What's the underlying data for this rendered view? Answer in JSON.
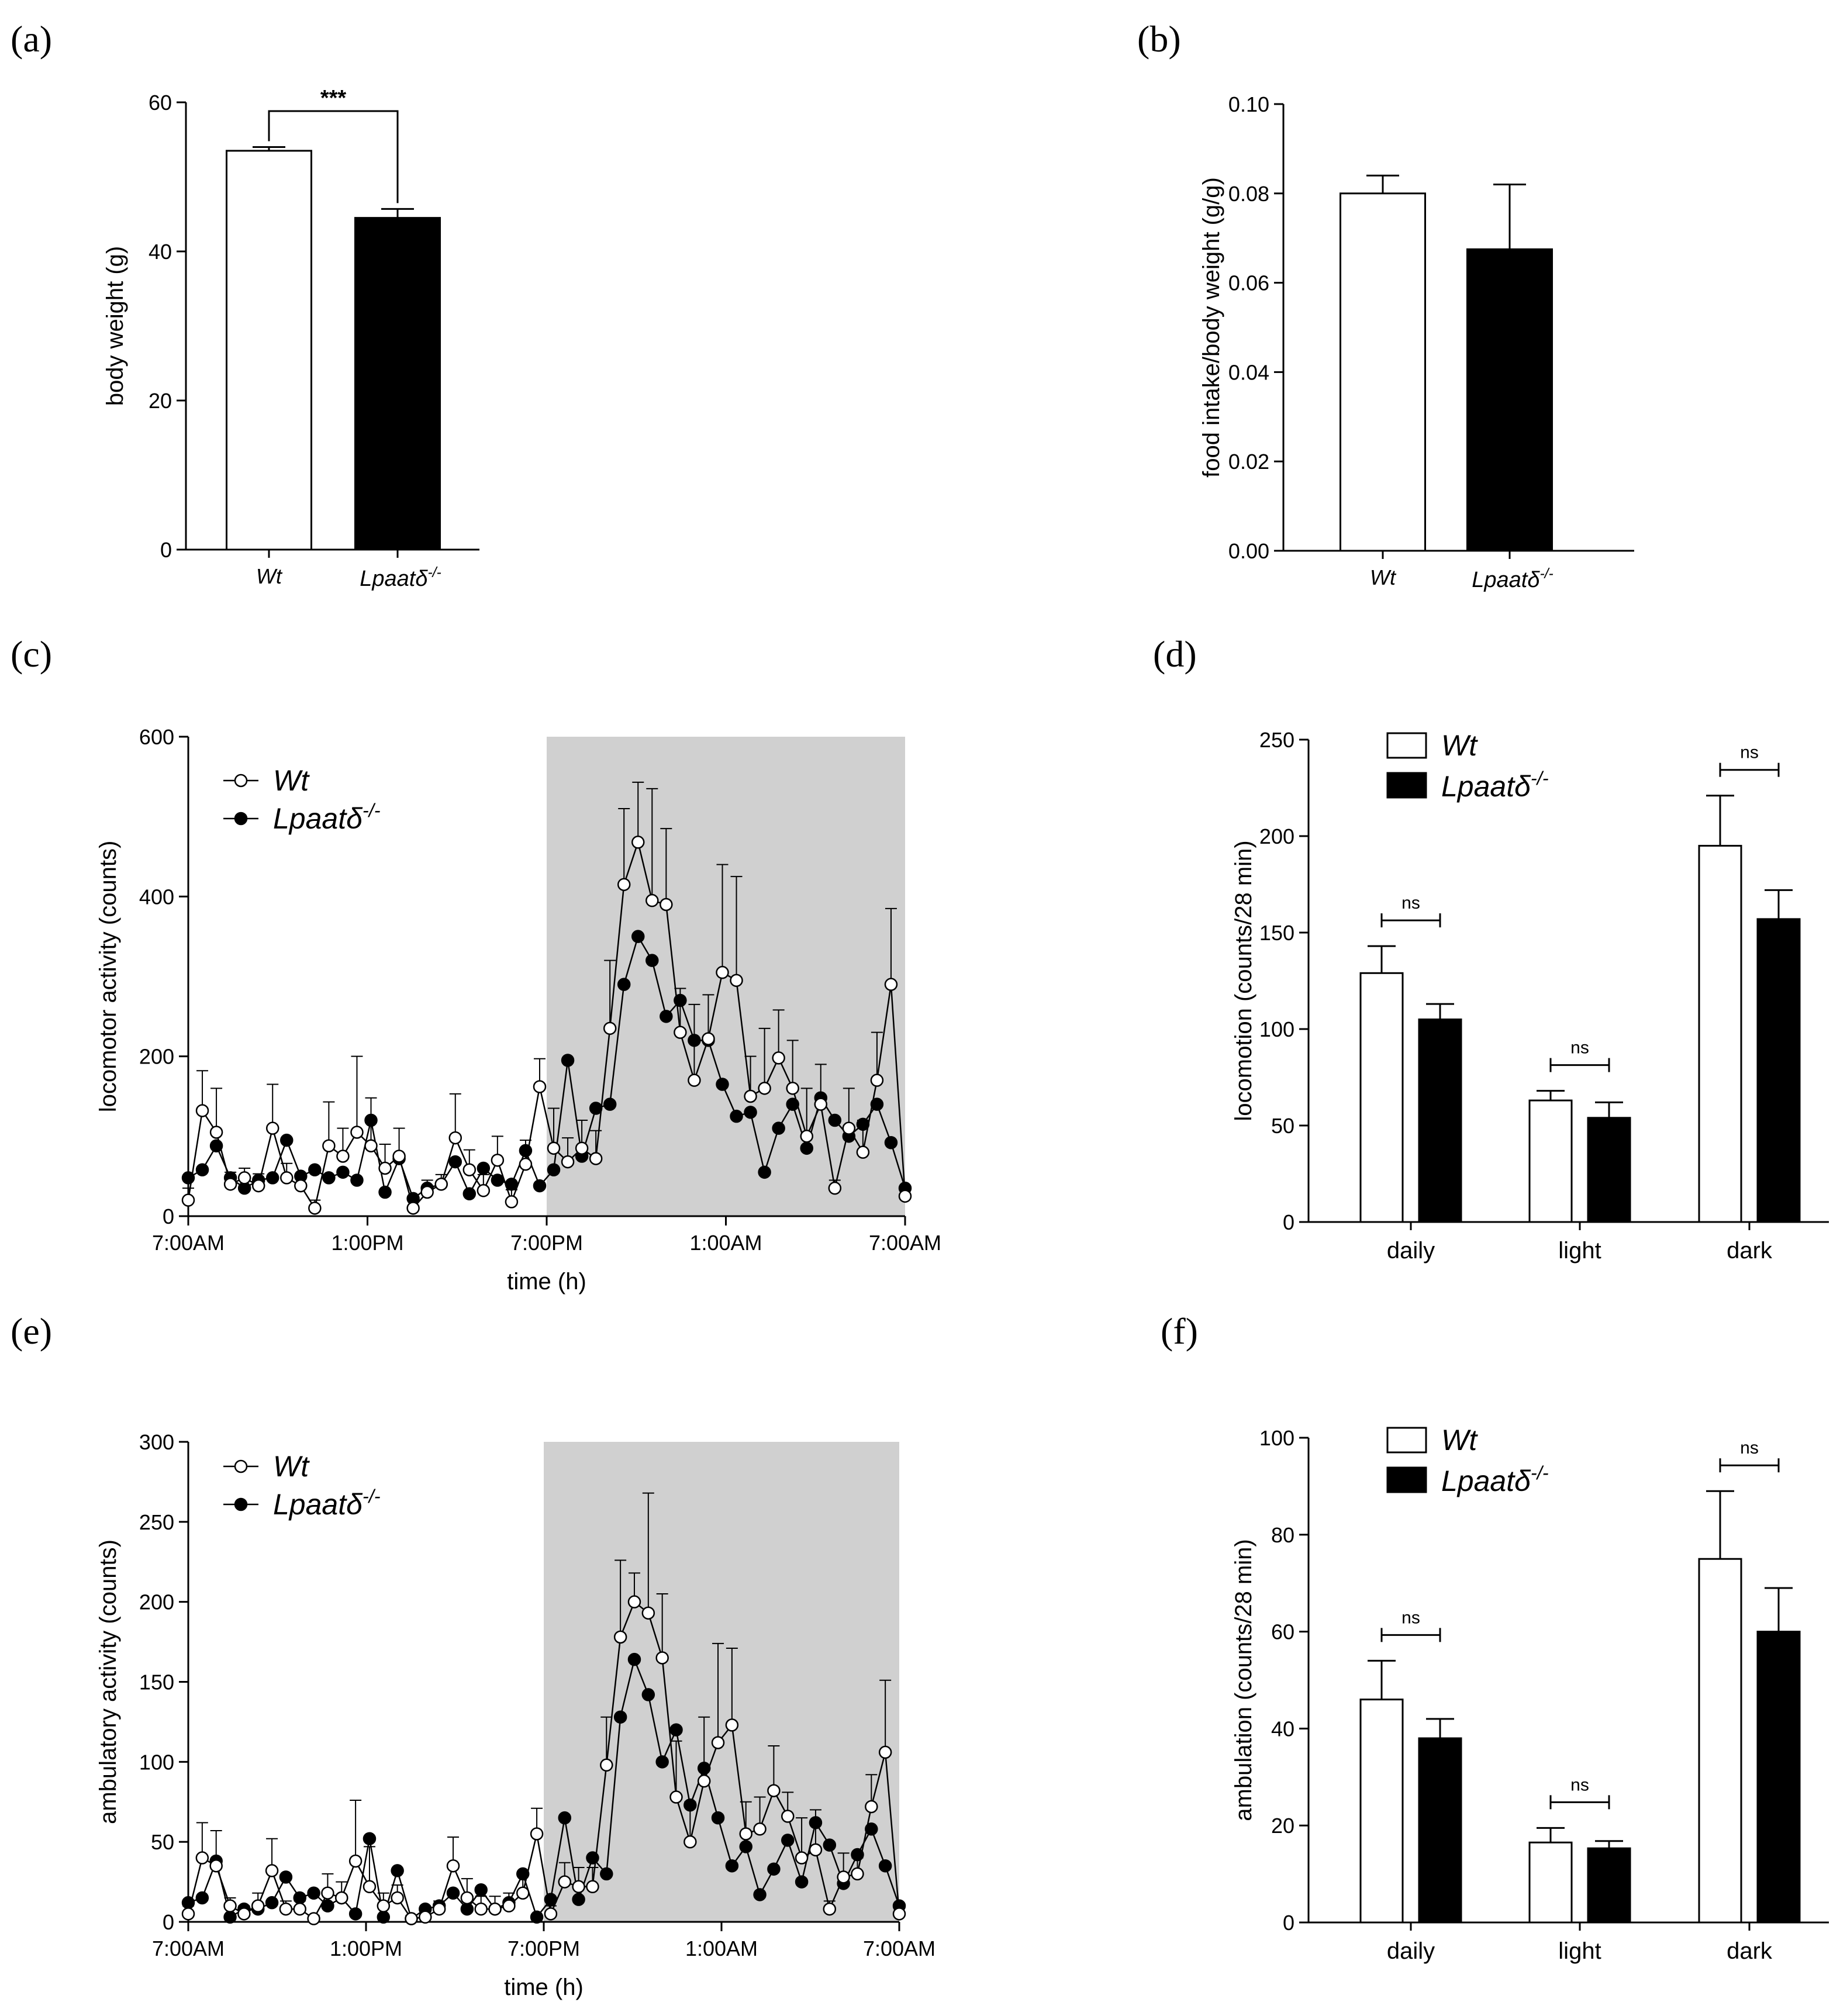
{
  "figure_labels": {
    "a": "(a)",
    "b": "(b)",
    "c": "(c)",
    "d": "(d)",
    "e": "(e)",
    "f": "(f)"
  },
  "genotypes": {
    "wt": "Wt",
    "ko_base": "Lpaatδ",
    "ko_sup": "-/-"
  },
  "colors": {
    "wt_fill": "#ffffff",
    "ko_fill": "#000000",
    "dark_phase": "#d0d0d0",
    "axis": "#000000"
  },
  "chart_data": [
    {
      "id": "a",
      "type": "bar",
      "ylabel": "body weight (g)",
      "ylim": [
        0,
        60
      ],
      "yticks": [
        "0",
        "20",
        "40",
        "60"
      ],
      "categories": [
        "Wt",
        "Lpaatδ-/-"
      ],
      "values": [
        53.5,
        44.5
      ],
      "errors": [
        0.5,
        1.2
      ],
      "significance": "***"
    },
    {
      "id": "b",
      "type": "bar",
      "ylabel": "food intake/body weight (g/g)",
      "ylim": [
        0,
        0.1
      ],
      "yticks": [
        "0.00",
        "0.02",
        "0.04",
        "0.06",
        "0.08",
        "0.10"
      ],
      "categories": [
        "Wt",
        "Lpaatδ-/-"
      ],
      "values": [
        0.08,
        0.0675
      ],
      "errors": [
        0.004,
        0.0145
      ]
    },
    {
      "id": "c",
      "type": "line",
      "xlabel": "time (h)",
      "ylabel": "locomotor activity (counts)",
      "ylim": [
        0,
        600
      ],
      "yticks": [
        "0",
        "200",
        "400",
        "600"
      ],
      "xticks": [
        "7:00AM",
        "1:00PM",
        "7:00PM",
        "1:00AM",
        "7:00AM"
      ],
      "x_range_h": [
        0,
        24
      ],
      "dark_phase_h": [
        12,
        24
      ],
      "series": [
        {
          "name": "Wt",
          "values": [
            20,
            132,
            105,
            40,
            48,
            38,
            110,
            48,
            38,
            10,
            88,
            75,
            105,
            88,
            60,
            75,
            10,
            30,
            40,
            98,
            58,
            32,
            70,
            18,
            65,
            162,
            85,
            68,
            85,
            72,
            235,
            415,
            468,
            395,
            390,
            230,
            170,
            222,
            305,
            295,
            150,
            160,
            198,
            160,
            100,
            140,
            35,
            110,
            80,
            170,
            290,
            25
          ],
          "errors": [
            15,
            50,
            55,
            15,
            12,
            15,
            55,
            18,
            12,
            10,
            55,
            35,
            95,
            60,
            30,
            35,
            10,
            15,
            12,
            55,
            25,
            20,
            30,
            15,
            30,
            35,
            50,
            30,
            35,
            35,
            85,
            95,
            75,
            140,
            95,
            55,
            95,
            55,
            135,
            130,
            50,
            75,
            60,
            60,
            60,
            50,
            10,
            50,
            40,
            60,
            95,
            10
          ]
        },
        {
          "name": "Lpaatδ-/-",
          "values": [
            48,
            58,
            88,
            48,
            35,
            45,
            48,
            95,
            50,
            58,
            48,
            55,
            45,
            120,
            30,
            72,
            22,
            35,
            40,
            68,
            28,
            60,
            45,
            40,
            82,
            38,
            58,
            195,
            75,
            135,
            140,
            290,
            350,
            320,
            250,
            270,
            220,
            220,
            165,
            125,
            130,
            55,
            110,
            140,
            85,
            148,
            120,
            100,
            115,
            140,
            92,
            35
          ],
          "errors": [
            0,
            0,
            0,
            0,
            0,
            0,
            0,
            0,
            0,
            0,
            0,
            0,
            0,
            0,
            0,
            0,
            0,
            0,
            0,
            0,
            0,
            0,
            0,
            0,
            0,
            0,
            0,
            0,
            0,
            0,
            0,
            0,
            0,
            0,
            0,
            0,
            0,
            0,
            0,
            0,
            0,
            0,
            0,
            0,
            0,
            0,
            0,
            0,
            0,
            0,
            0,
            0
          ]
        }
      ]
    },
    {
      "id": "d",
      "type": "bar",
      "ylabel": "locomotion (counts/28 min)",
      "ylim": [
        0,
        250
      ],
      "yticks": [
        "0",
        "50",
        "100",
        "150",
        "200",
        "250"
      ],
      "categories": [
        "daily",
        "light",
        "dark"
      ],
      "series": [
        {
          "name": "Wt",
          "values": [
            129,
            63,
            195
          ],
          "errors": [
            14,
            5,
            26
          ]
        },
        {
          "name": "Lpaatδ-/-",
          "values": [
            105,
            54,
            157
          ],
          "errors": [
            8,
            8,
            15
          ]
        }
      ],
      "significance": [
        "ns",
        "ns",
        "ns"
      ]
    },
    {
      "id": "e",
      "type": "line",
      "xlabel": "time (h)",
      "ylabel": "ambulatory activity (counts)",
      "ylim": [
        0,
        300
      ],
      "yticks": [
        "0",
        "50",
        "100",
        "150",
        "200",
        "250",
        "300"
      ],
      "xticks": [
        "7:00AM",
        "1:00PM",
        "7:00PM",
        "1:00AM",
        "7:00AM"
      ],
      "x_range_h": [
        0,
        24
      ],
      "dark_phase_h": [
        12,
        24
      ],
      "series": [
        {
          "name": "Wt",
          "values": [
            5,
            40,
            35,
            10,
            5,
            10,
            32,
            8,
            8,
            2,
            18,
            15,
            38,
            22,
            10,
            15,
            2,
            3,
            8,
            35,
            15,
            8,
            8,
            10,
            18,
            55,
            5,
            25,
            22,
            22,
            98,
            178,
            200,
            193,
            165,
            78,
            50,
            88,
            112,
            123,
            55,
            58,
            82,
            66,
            40,
            45,
            8,
            28,
            30,
            72,
            106,
            5
          ],
          "errors": [
            5,
            22,
            22,
            5,
            5,
            8,
            20,
            5,
            5,
            2,
            12,
            10,
            38,
            25,
            8,
            8,
            2,
            2,
            5,
            18,
            12,
            8,
            8,
            8,
            12,
            16,
            5,
            12,
            12,
            12,
            30,
            48,
            18,
            75,
            40,
            35,
            25,
            40,
            62,
            48,
            20,
            20,
            28,
            15,
            25,
            25,
            5,
            15,
            10,
            20,
            45,
            5
          ]
        },
        {
          "name": "Lpaatδ-/-",
          "values": [
            12,
            15,
            38,
            3,
            8,
            8,
            12,
            28,
            15,
            18,
            10,
            15,
            5,
            52,
            3,
            32,
            2,
            8,
            10,
            18,
            8,
            20,
            8,
            12,
            30,
            3,
            14,
            65,
            14,
            40,
            30,
            128,
            164,
            142,
            100,
            120,
            73,
            96,
            65,
            35,
            47,
            17,
            33,
            51,
            25,
            62,
            48,
            24,
            42,
            58,
            35,
            10
          ],
          "errors": [
            0,
            0,
            0,
            0,
            0,
            0,
            0,
            0,
            0,
            0,
            0,
            0,
            0,
            0,
            0,
            0,
            0,
            0,
            0,
            0,
            0,
            0,
            0,
            0,
            0,
            0,
            0,
            0,
            0,
            0,
            0,
            0,
            0,
            0,
            0,
            0,
            0,
            0,
            0,
            0,
            0,
            0,
            0,
            0,
            0,
            0,
            0,
            0,
            0,
            0,
            0,
            0
          ]
        }
      ]
    },
    {
      "id": "f",
      "type": "bar",
      "ylabel": "ambulation (counts/28 min)",
      "ylim": [
        0,
        100
      ],
      "yticks": [
        "0",
        "20",
        "40",
        "60",
        "80",
        "100"
      ],
      "categories": [
        "daily",
        "light",
        "dark"
      ],
      "series": [
        {
          "name": "Wt",
          "values": [
            46,
            16.5,
            75
          ],
          "errors": [
            8,
            3,
            14
          ]
        },
        {
          "name": "Lpaatδ-/-",
          "values": [
            38,
            15.3,
            60
          ],
          "errors": [
            4,
            1.5,
            9
          ]
        }
      ],
      "significance": [
        "ns",
        "ns",
        "ns"
      ]
    }
  ]
}
